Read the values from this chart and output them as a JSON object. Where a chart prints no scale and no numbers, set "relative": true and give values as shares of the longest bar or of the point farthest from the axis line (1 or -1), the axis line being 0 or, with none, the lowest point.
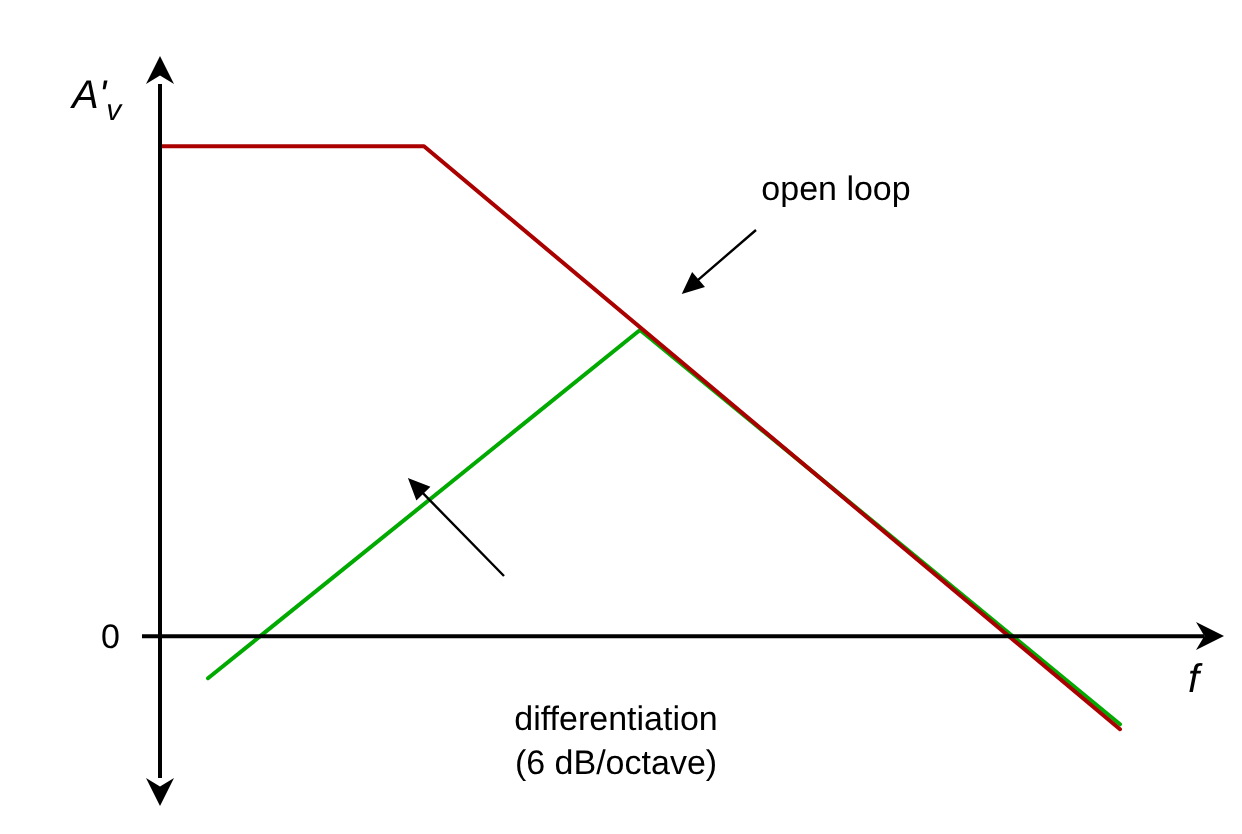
{
  "chart_data": {
    "type": "line",
    "relative": true,
    "xlabel": "f",
    "ylabel": "A'$_{v}$",
    "marker": "none",
    "line_style": "solid",
    "categories": [
      null,
      null,
      null,
      null,
      null,
      null,
      null,
      null,
      null,
      null,
      null,
      null,
      null,
      null,
      null,
      null,
      null,
      null,
      null,
      null,
      null,
      null,
      null,
      null,
      null,
      null,
      null,
      null,
      null,
      null,
      null,
      null,
      null,
      null,
      null,
      null,
      null,
      null,
      null,
      null,
      null,
      null,
      null,
      null,
      null
    ],
    "series": [
      {
        "color": "#aa0000",
        "values": [
          1,
          null,
          null,
          null,
          null,
          null,
          null,
          null,
          null,
          null,
          null,
          1,
          null,
          null,
          null,
          null,
          null,
          null,
          null,
          null,
          null,
          null,
          null,
          null,
          null,
          null,
          null,
          null,
          null,
          null,
          null,
          null,
          null,
          null,
          null,
          null,
          null,
          null,
          null,
          null,
          -0.19,
          null,
          null,
          null,
          null
        ]
      },
      {
        "color": "#00aa00",
        "values": [
          null,
          null,
          -0.086,
          null,
          null,
          null,
          null,
          null,
          null,
          null,
          null,
          null,
          null,
          null,
          null,
          null,
          null,
          null,
          null,
          null,
          0.625,
          null,
          null,
          null,
          null,
          null,
          null,
          null,
          null,
          null,
          null,
          null,
          null,
          null,
          null,
          null,
          null,
          null,
          null,
          null,
          -0.18,
          null,
          null,
          null,
          null
        ]
      }
    ],
    "annotations": [
      "0",
      "open loop",
      "differentiation",
      "(6 dB/octave)"
    ]
  }
}
